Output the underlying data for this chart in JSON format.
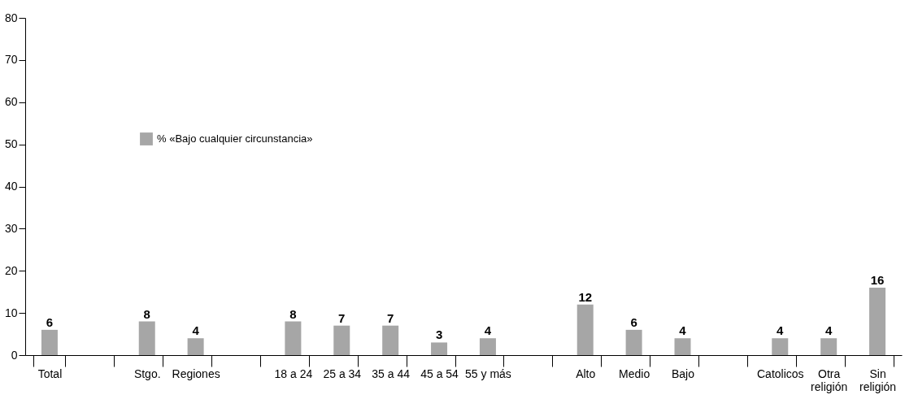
{
  "chart_data": {
    "type": "bar",
    "categories": [
      "Total",
      null,
      "Stgo.",
      "Regiones",
      null,
      "18 a 24",
      "25 a 34",
      "35 a 44",
      "45 a 54",
      "55 y más",
      null,
      "Alto",
      "Medio",
      "Bajo",
      null,
      "Catolicos",
      "Otra religión",
      "Sin religión"
    ],
    "series": [
      {
        "name": "% «Bajo cualquier circunstancia»",
        "color": "#a6a6a6",
        "values": [
          6,
          null,
          8,
          4,
          null,
          8,
          7,
          7,
          3,
          4,
          null,
          12,
          6,
          4,
          null,
          4,
          4,
          16
        ]
      }
    ],
    "ylim": [
      0,
      80
    ],
    "yticks": [
      0,
      10,
      20,
      30,
      40,
      50,
      60,
      70,
      80
    ],
    "data_labels": true,
    "legend": "top left",
    "grid": false
  }
}
